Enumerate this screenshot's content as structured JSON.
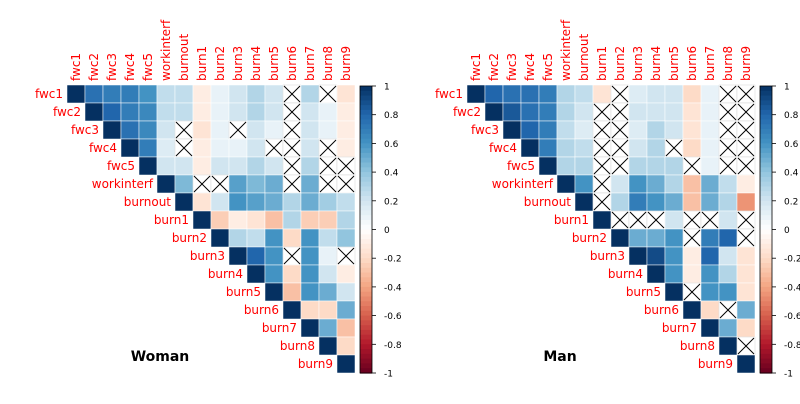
{
  "chart_data": [
    {
      "type": "heatmap",
      "subtype": "correlation-matrix-upper-triangle",
      "title": "Woman",
      "variables": [
        "fwc1",
        "fwc2",
        "fwc3",
        "fwc4",
        "fwc5",
        "workinterf",
        "burnout",
        "burn1",
        "burn2",
        "burn3",
        "burn4",
        "burn5",
        "burn6",
        "burn7",
        "burn8",
        "burn9"
      ],
      "values": [
        [
          1,
          0.75,
          0.7,
          0.7,
          0.6,
          0.25,
          0.25,
          -0.1,
          0.1,
          0.2,
          0.3,
          0.2,
          null,
          0.3,
          null,
          -0.15
        ],
        [
          null,
          1,
          0.8,
          0.7,
          0.65,
          0.25,
          0.25,
          -0.1,
          0.1,
          0.2,
          0.3,
          0.2,
          null,
          0.2,
          0.1,
          -0.1
        ],
        [
          null,
          null,
          1,
          0.75,
          0.65,
          0.2,
          null,
          -0.15,
          0.1,
          null,
          0.2,
          0.1,
          null,
          0.2,
          0.1,
          -0.1
        ],
        [
          null,
          null,
          null,
          1,
          0.7,
          0.15,
          null,
          -0.1,
          0.1,
          0.1,
          0.2,
          null,
          null,
          0.2,
          null,
          -0.1
        ],
        [
          null,
          null,
          null,
          null,
          1,
          0.2,
          0.2,
          -0.1,
          0.2,
          0.2,
          0.3,
          0.2,
          null,
          0.3,
          null,
          null
        ],
        [
          null,
          null,
          null,
          null,
          null,
          1,
          0.45,
          null,
          null,
          0.55,
          0.45,
          0.5,
          null,
          0.5,
          null,
          null
        ],
        [
          null,
          null,
          null,
          null,
          null,
          null,
          1,
          -0.15,
          0.2,
          0.6,
          0.55,
          0.5,
          0.3,
          0.5,
          0.35,
          0.25
        ],
        [
          null,
          null,
          null,
          null,
          null,
          null,
          null,
          1,
          -0.25,
          -0.1,
          -0.15,
          -0.3,
          0.3,
          -0.25,
          -0.25,
          0.3
        ],
        [
          null,
          null,
          null,
          null,
          null,
          null,
          null,
          null,
          1,
          0.3,
          0.25,
          0.6,
          -0.2,
          0.6,
          0.25,
          0.4
        ],
        [
          null,
          null,
          null,
          null,
          null,
          null,
          null,
          null,
          null,
          1,
          0.8,
          0.6,
          null,
          0.6,
          0.1,
          null
        ],
        [
          null,
          null,
          null,
          null,
          null,
          null,
          null,
          null,
          null,
          null,
          1,
          0.6,
          -0.2,
          0.6,
          0.2,
          -0.1
        ],
        [
          null,
          null,
          null,
          null,
          null,
          null,
          null,
          null,
          null,
          null,
          null,
          1,
          -0.3,
          0.6,
          0.5,
          0.2
        ],
        [
          null,
          null,
          null,
          null,
          null,
          null,
          null,
          null,
          null,
          null,
          null,
          null,
          1,
          -0.2,
          -0.2,
          0.5
        ],
        [
          null,
          null,
          null,
          null,
          null,
          null,
          null,
          null,
          null,
          null,
          null,
          null,
          null,
          1,
          0.5,
          -0.3
        ],
        [
          null,
          null,
          null,
          null,
          null,
          null,
          null,
          null,
          null,
          null,
          null,
          null,
          null,
          null,
          1,
          -0.2
        ],
        [
          null,
          null,
          null,
          null,
          null,
          null,
          null,
          null,
          null,
          null,
          null,
          null,
          null,
          null,
          null,
          1
        ]
      ],
      "colorbar": {
        "min": -1,
        "max": 1,
        "ticks": [
          "1",
          "0.8",
          "0.6",
          "0.4",
          "0.2",
          "0",
          "-0.2",
          "-0.4",
          "-0.6",
          "-0.8",
          "-1"
        ]
      }
    },
    {
      "type": "heatmap",
      "subtype": "correlation-matrix-upper-triangle",
      "title": "Man",
      "variables": [
        "fwc1",
        "fwc2",
        "fwc3",
        "fwc4",
        "fwc5",
        "workinterf",
        "burnout",
        "burn1",
        "burn2",
        "burn3",
        "burn4",
        "burn5",
        "burn6",
        "burn7",
        "burn8",
        "burn9"
      ],
      "values": [
        [
          1,
          0.8,
          0.75,
          0.75,
          0.7,
          0.3,
          0.25,
          -0.15,
          null,
          0.15,
          0.2,
          0.2,
          -0.2,
          0.1,
          null,
          null
        ],
        [
          null,
          1,
          0.85,
          0.75,
          0.7,
          0.3,
          0.2,
          null,
          null,
          0.2,
          0.2,
          0.2,
          -0.15,
          0.1,
          null,
          null
        ],
        [
          null,
          null,
          1,
          0.8,
          0.7,
          0.25,
          0.15,
          null,
          null,
          0.15,
          0.3,
          0.2,
          -0.15,
          0.1,
          null,
          null
        ],
        [
          null,
          null,
          null,
          1,
          0.7,
          0.3,
          0.25,
          null,
          null,
          0.2,
          0.3,
          null,
          -0.2,
          0.1,
          null,
          null
        ],
        [
          null,
          null,
          null,
          null,
          1,
          0.3,
          0.3,
          null,
          null,
          0.3,
          0.3,
          0.3,
          null,
          0.1,
          null,
          null
        ],
        [
          null,
          null,
          null,
          null,
          null,
          1,
          0.6,
          null,
          0.2,
          0.6,
          0.5,
          0.3,
          -0.3,
          0.5,
          0.25,
          -0.1
        ],
        [
          null,
          null,
          null,
          null,
          null,
          null,
          1,
          null,
          0.3,
          0.7,
          0.6,
          0.5,
          -0.3,
          0.5,
          0.3,
          -0.45
        ],
        [
          null,
          null,
          null,
          null,
          null,
          null,
          null,
          1,
          null,
          null,
          null,
          0.2,
          null,
          null,
          0.2,
          null
        ],
        [
          null,
          null,
          null,
          null,
          null,
          null,
          null,
          null,
          1,
          0.5,
          0.5,
          0.6,
          null,
          0.7,
          0.8,
          null
        ],
        [
          null,
          null,
          null,
          null,
          null,
          null,
          null,
          null,
          null,
          1,
          0.9,
          0.6,
          -0.1,
          0.8,
          0.2,
          -0.15
        ],
        [
          null,
          null,
          null,
          null,
          null,
          null,
          null,
          null,
          null,
          null,
          1,
          0.6,
          -0.1,
          0.6,
          0.3,
          -0.15
        ],
        [
          null,
          null,
          null,
          null,
          null,
          null,
          null,
          null,
          null,
          null,
          null,
          1,
          null,
          0.6,
          0.6,
          -0.15
        ],
        [
          null,
          null,
          null,
          null,
          null,
          null,
          null,
          null,
          null,
          null,
          null,
          null,
          1,
          -0.2,
          null,
          0.5
        ],
        [
          null,
          null,
          null,
          null,
          null,
          null,
          null,
          null,
          null,
          null,
          null,
          null,
          null,
          1,
          0.5,
          -0.2
        ],
        [
          null,
          null,
          null,
          null,
          null,
          null,
          null,
          null,
          null,
          null,
          null,
          null,
          null,
          null,
          1,
          null
        ],
        [
          null,
          null,
          null,
          null,
          null,
          null,
          null,
          null,
          null,
          null,
          null,
          null,
          null,
          null,
          null,
          1
        ]
      ],
      "colorbar": {
        "min": -1,
        "max": 1,
        "ticks": [
          "1",
          "0.8",
          "0.6",
          "0.4",
          "0.2",
          "0",
          "-0.2",
          "-0.4",
          "-0.6",
          "-0.8",
          "-1"
        ]
      }
    }
  ],
  "colors": {
    "label": "#ff0000",
    "title": "#000000",
    "scale": [
      "#67001f",
      "#b2182b",
      "#d6604d",
      "#f4a582",
      "#fddbc7",
      "#ffffff",
      "#d1e5f0",
      "#92c5de",
      "#4393c3",
      "#2166ac",
      "#053061"
    ]
  }
}
